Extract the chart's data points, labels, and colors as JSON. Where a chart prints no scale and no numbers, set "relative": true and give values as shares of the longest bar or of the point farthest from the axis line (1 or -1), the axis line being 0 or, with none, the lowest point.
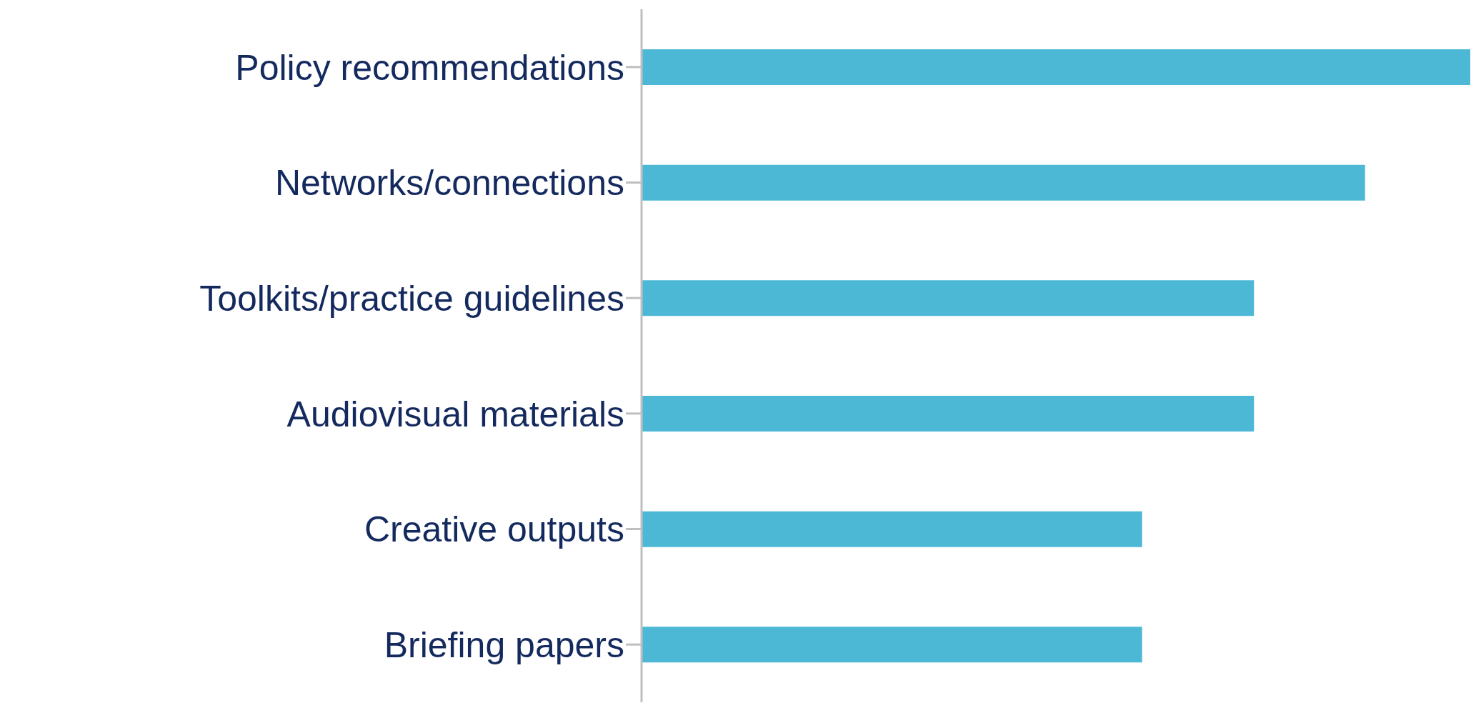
{
  "chart_data": {
    "type": "bar",
    "orientation": "horizontal",
    "relative": true,
    "categories": [
      "Policy recommendations",
      "Networks/connections",
      "Toolkits/practice guidelines",
      "Audiovisual materials",
      "Creative outputs",
      "Briefing papers"
    ],
    "values": [
      1,
      0.873,
      0.739,
      0.739,
      0.604,
      0.604
    ],
    "color": "#4db8d6",
    "grid": false,
    "legend": false
  }
}
